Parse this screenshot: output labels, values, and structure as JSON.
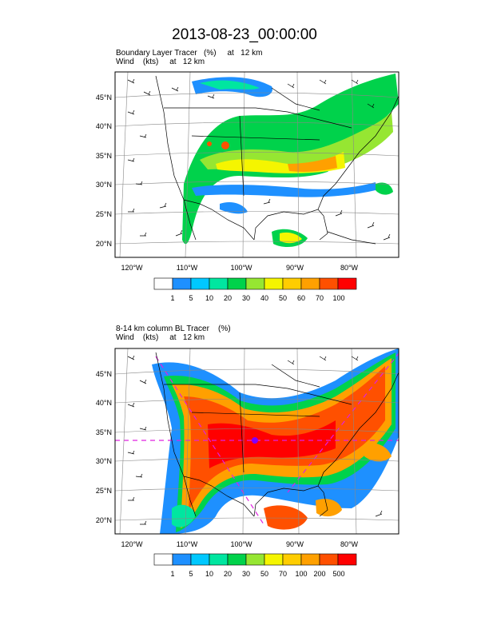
{
  "title": "2013-08-23_00:00:00",
  "panels": [
    {
      "subtitle1": "Boundary Layer Tracer   (%)     at   12 km",
      "subtitle2": "Wind    (kts)     at   12 km",
      "lat_labels": [
        "45°N",
        "40°N",
        "35°N",
        "30°N",
        "25°N",
        "20°N"
      ],
      "lon_labels": [
        "120°W",
        "110°W",
        "100°W",
        "90°W",
        "80°W"
      ],
      "colorbar_labels": [
        "1",
        "5",
        "10",
        "20",
        "30",
        "40",
        "50",
        "60",
        "70",
        "100"
      ]
    },
    {
      "subtitle1": "8-14 km column BL Tracer    (%)",
      "subtitle2": "Wind    (kts)     at   12 km",
      "lat_labels": [
        "45°N",
        "40°N",
        "35°N",
        "30°N",
        "25°N",
        "20°N"
      ],
      "lon_labels": [
        "120°W",
        "110°W",
        "100°W",
        "90°W",
        "80°W"
      ],
      "colorbar_labels": [
        "1",
        "5",
        "10",
        "20",
        "30",
        "50",
        "70",
        "100",
        "200",
        "500"
      ]
    }
  ],
  "colorbar_colors": [
    "#ffffff",
    "#1e90ff",
    "#00c8ff",
    "#00e6a0",
    "#00d24b",
    "#96e632",
    "#f5f500",
    "#ffcd00",
    "#ffa000",
    "#ff5000",
    "#ff0000"
  ]
}
